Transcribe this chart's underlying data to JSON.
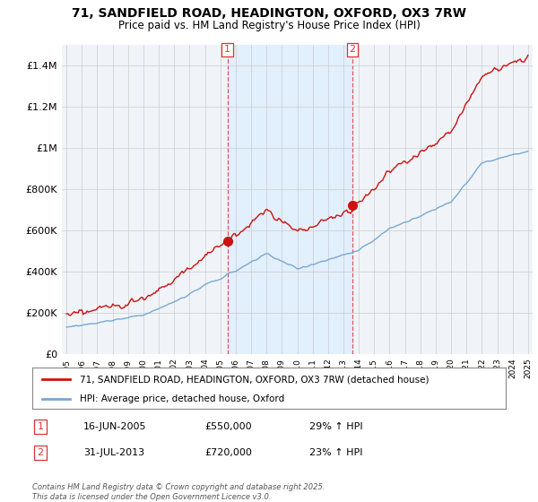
{
  "title_line1": "71, SANDFIELD ROAD, HEADINGTON, OXFORD, OX3 7RW",
  "title_line2": "Price paid vs. HM Land Registry's House Price Index (HPI)",
  "ylim": [
    0,
    1500000
  ],
  "yticks": [
    0,
    200000,
    400000,
    600000,
    800000,
    1000000,
    1200000,
    1400000
  ],
  "ytick_labels": [
    "£0",
    "£200K",
    "£400K",
    "£600K",
    "£800K",
    "£1M",
    "£1.2M",
    "£1.4M"
  ],
  "x_start_year": 1995,
  "x_end_year": 2025,
  "purchase1_year": 2005.46,
  "purchase1_price": 550000,
  "purchase2_year": 2013.58,
  "purchase2_price": 720000,
  "hpi_color": "#7aa8d2",
  "hpi_fill_color": "#ddeeff",
  "property_color": "#cc1111",
  "vline_color": "#dd3333",
  "grid_color": "#cccccc",
  "bg_color": "#f0f4f8",
  "legend_label_property": "71, SANDFIELD ROAD, HEADINGTON, OXFORD, OX3 7RW (detached house)",
  "legend_label_hpi": "HPI: Average price, detached house, Oxford",
  "footer_text": "Contains HM Land Registry data © Crown copyright and database right 2025.\nThis data is licensed under the Open Government Licence v3.0.",
  "annotation_table": [
    [
      "1",
      "16-JUN-2005",
      "£550,000",
      "29% ↑ HPI"
    ],
    [
      "2",
      "31-JUL-2013",
      "£720,000",
      "23% ↑ HPI"
    ]
  ]
}
